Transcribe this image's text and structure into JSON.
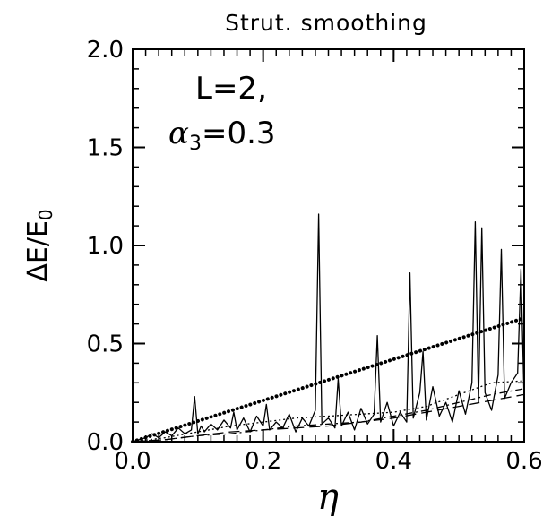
{
  "chart_data": {
    "type": "line",
    "title": "Strut. smoothing",
    "xlabel": "η",
    "ylabel_main": "ΔE/E",
    "ylabel_sub": "0",
    "annotation": {
      "line1": "L=2,",
      "line2_symbol": "α",
      "line2_sub": "3",
      "line2_value": "=0.3"
    },
    "xlim": [
      0.0,
      0.6
    ],
    "ylim": [
      0.0,
      2.0
    ],
    "x_ticks": [
      {
        "value": 0.0,
        "label": "0.0"
      },
      {
        "value": 0.2,
        "label": "0.2"
      },
      {
        "value": 0.4,
        "label": "0.4"
      },
      {
        "value": 0.6,
        "label": "0.6"
      }
    ],
    "y_ticks": [
      {
        "value": 0.0,
        "label": "0.0"
      },
      {
        "value": 0.5,
        "label": "0.5"
      },
      {
        "value": 1.0,
        "label": "1.0"
      },
      {
        "value": 1.5,
        "label": "1.5"
      },
      {
        "value": 2.0,
        "label": "2.0"
      }
    ],
    "x_minor_step": 0.02,
    "y_minor_step": 0.1,
    "series": [
      {
        "style": "solid-thin",
        "x": [
          0.0,
          0.01,
          0.02,
          0.03,
          0.04,
          0.05,
          0.06,
          0.07,
          0.08,
          0.09,
          0.095,
          0.1,
          0.105,
          0.11,
          0.12,
          0.13,
          0.14,
          0.15,
          0.155,
          0.16,
          0.17,
          0.18,
          0.19,
          0.2,
          0.205,
          0.21,
          0.22,
          0.23,
          0.24,
          0.25,
          0.26,
          0.27,
          0.28,
          0.285,
          0.29,
          0.3,
          0.31,
          0.315,
          0.32,
          0.33,
          0.34,
          0.35,
          0.36,
          0.37,
          0.375,
          0.38,
          0.39,
          0.4,
          0.41,
          0.42,
          0.425,
          0.43,
          0.44,
          0.445,
          0.45,
          0.46,
          0.47,
          0.48,
          0.49,
          0.5,
          0.51,
          0.52,
          0.525,
          0.53,
          0.535,
          0.54,
          0.55,
          0.56,
          0.565,
          0.57,
          0.58,
          0.59,
          0.595,
          0.6
        ],
        "y": [
          0.0,
          0.01,
          0.02,
          0.04,
          0.02,
          0.05,
          0.03,
          0.07,
          0.04,
          0.06,
          0.23,
          0.04,
          0.08,
          0.05,
          0.09,
          0.06,
          0.11,
          0.07,
          0.15,
          0.06,
          0.12,
          0.05,
          0.13,
          0.08,
          0.19,
          0.06,
          0.1,
          0.07,
          0.14,
          0.05,
          0.12,
          0.08,
          0.16,
          1.16,
          0.09,
          0.12,
          0.07,
          0.32,
          0.08,
          0.15,
          0.06,
          0.17,
          0.09,
          0.14,
          0.54,
          0.1,
          0.2,
          0.08,
          0.15,
          0.1,
          0.86,
          0.12,
          0.25,
          0.46,
          0.11,
          0.28,
          0.13,
          0.2,
          0.1,
          0.26,
          0.14,
          0.3,
          1.12,
          0.2,
          1.09,
          0.25,
          0.16,
          0.34,
          0.98,
          0.22,
          0.3,
          0.35,
          0.88,
          0.2
        ]
      },
      {
        "style": "dotted-thick",
        "x": [
          0.0,
          0.6
        ],
        "y": [
          0.0,
          0.63
        ]
      },
      {
        "style": "dashed",
        "x": [
          0.0,
          0.05,
          0.1,
          0.15,
          0.2,
          0.25,
          0.3,
          0.35,
          0.4,
          0.45,
          0.5,
          0.55,
          0.6
        ],
        "y": [
          0.0,
          0.01,
          0.03,
          0.05,
          0.06,
          0.07,
          0.08,
          0.1,
          0.12,
          0.15,
          0.18,
          0.21,
          0.24
        ]
      },
      {
        "style": "dotted-thin",
        "x": [
          0.0,
          0.05,
          0.1,
          0.15,
          0.2,
          0.25,
          0.3,
          0.35,
          0.4,
          0.45,
          0.5,
          0.55,
          0.6
        ],
        "y": [
          0.0,
          0.02,
          0.05,
          0.08,
          0.1,
          0.12,
          0.13,
          0.14,
          0.15,
          0.18,
          0.24,
          0.3,
          0.31
        ]
      },
      {
        "style": "dash-dot",
        "x": [
          0.0,
          0.05,
          0.1,
          0.15,
          0.2,
          0.25,
          0.3,
          0.35,
          0.4,
          0.45,
          0.5,
          0.55,
          0.6
        ],
        "y": [
          0.0,
          0.01,
          0.03,
          0.04,
          0.06,
          0.08,
          0.09,
          0.1,
          0.13,
          0.16,
          0.2,
          0.24,
          0.27
        ]
      }
    ]
  }
}
